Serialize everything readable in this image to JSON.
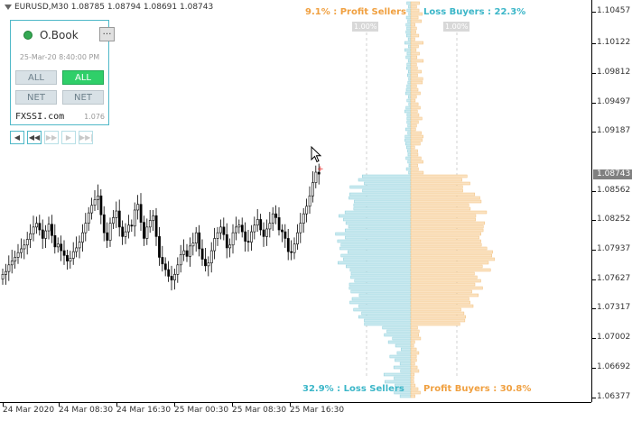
{
  "header": {
    "symbol": "EURUSD,M30",
    "open": "1.08785",
    "high": "1.08794",
    "low": "1.08691",
    "close": "1.08743"
  },
  "price_axis": {
    "ticks": [
      "1.10457",
      "1.10122",
      "1.09812",
      "1.09497",
      "1.09187",
      "1.08562",
      "1.08252",
      "1.07937",
      "1.07627",
      "1.07317",
      "1.07002",
      "1.06692",
      "1.06377"
    ],
    "current_price": "1.08743"
  },
  "time_axis": {
    "labels": [
      "24 Mar 2020",
      "24 Mar 08:30",
      "24 Mar 16:30",
      "25 Mar 00:30",
      "25 Mar 08:30",
      "25 Mar 16:30"
    ]
  },
  "panel": {
    "title": "O.Book",
    "minimize_label": "…",
    "datetime": "25-Mar-20 8:40:00 PM",
    "buttons": {
      "all_left": "ALL",
      "all_right": "ALL",
      "net_left": "NET",
      "net_right": "NET"
    },
    "brand": "FXSSI.com",
    "version": "1.076"
  },
  "nav_buttons": [
    "◀",
    "◀◀",
    "▶▶",
    "▶",
    "▶▶|"
  ],
  "order_book": {
    "profit_sellers": "9.1% : Profit Sellers",
    "loss_buyers": "Loss Buyers : 22.3%",
    "loss_sellers": "32.9% : Loss Sellers",
    "profit_buyers": "Profit Buyers : 30.8%",
    "scale_left": "1.00%",
    "scale_right": "1.00%"
  },
  "colors": {
    "orange": "#f0a040",
    "blue": "#3bb6c8",
    "orange_bar": "#fbe3c2",
    "blue_bar": "#cbeaf0",
    "active_green": "#2fcf69"
  },
  "chart_data": {
    "type": "candlestick",
    "symbol": "EURUSD",
    "timeframe": "M30",
    "ylim": [
      1.0631,
      1.1056
    ],
    "close_series": [
      1.0768,
      1.0771,
      1.0778,
      1.0782,
      1.0786,
      1.0791,
      1.0795,
      1.0799,
      1.0805,
      1.0811,
      1.0818,
      1.0822,
      1.0815,
      1.0806,
      1.0814,
      1.0821,
      1.0809,
      1.0797,
      1.08,
      1.0793,
      1.0788,
      1.0782,
      1.0785,
      1.0792,
      1.0796,
      1.0802,
      1.0812,
      1.0822,
      1.0833,
      1.0841,
      1.0847,
      1.0851,
      1.0831,
      1.0812,
      1.0804,
      1.0822,
      1.0828,
      1.0835,
      1.0818,
      1.0808,
      1.0813,
      1.082,
      1.0819,
      1.0836,
      1.0842,
      1.0823,
      1.0806,
      1.0818,
      1.0825,
      1.083,
      1.0808,
      1.0786,
      1.0779,
      1.0773,
      1.0766,
      1.0762,
      1.0768,
      1.0778,
      1.0789,
      1.0793,
      1.0787,
      1.0798,
      1.0801,
      1.0812,
      1.0795,
      1.0784,
      1.0777,
      1.078,
      1.0793,
      1.0806,
      1.0812,
      1.0818,
      1.081,
      1.0796,
      1.0799,
      1.0812,
      1.0818,
      1.082,
      1.0813,
      1.0803,
      1.0802,
      1.0813,
      1.082,
      1.0826,
      1.0815,
      1.0808,
      1.0816,
      1.0822,
      1.0832,
      1.0828,
      1.0815,
      1.0813,
      1.0806,
      1.0792,
      1.0791,
      1.08,
      1.0812,
      1.0822,
      1.0832,
      1.084,
      1.0851,
      1.0865,
      1.0876,
      1.0874
    ]
  }
}
